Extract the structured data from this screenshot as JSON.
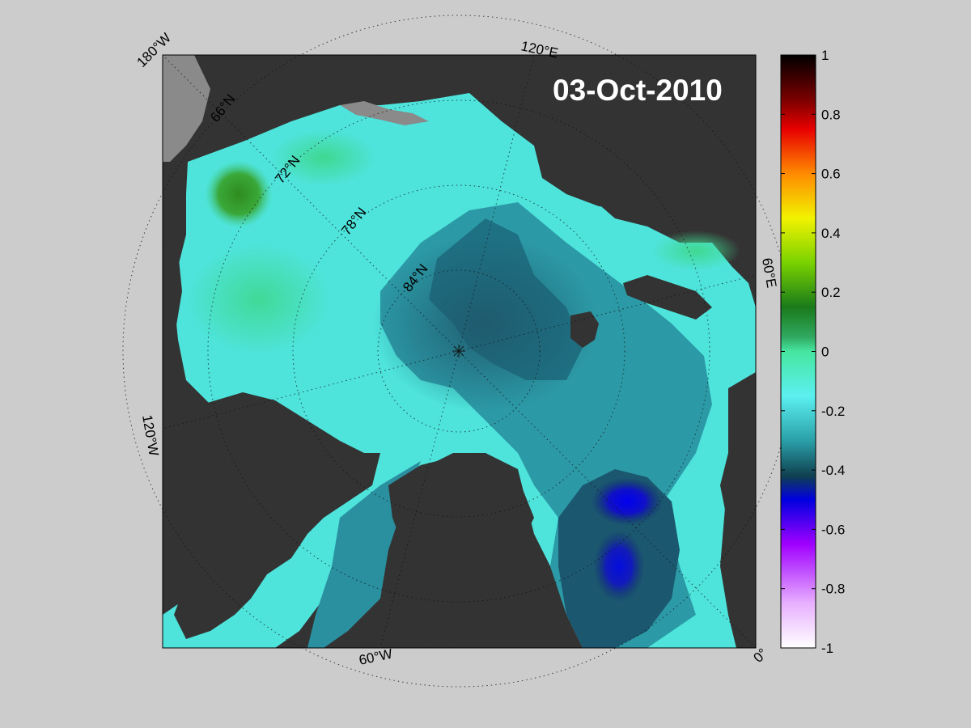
{
  "map": {
    "date": "03-Oct-2010",
    "background_color": "#cccccc",
    "land_color": "#333333",
    "ice_shelf_color": "#8a8a8a",
    "meridian_labels": [
      {
        "text": "180°W",
        "key": "m180w"
      },
      {
        "text": "120°E",
        "key": "m120e"
      },
      {
        "text": "60°E",
        "key": "m60e"
      },
      {
        "text": "0°",
        "key": "m0"
      },
      {
        "text": "60°W",
        "key": "m60w"
      },
      {
        "text": "120°W",
        "key": "m120w"
      }
    ],
    "parallel_labels": [
      "66°N",
      "72°N",
      "78°N",
      "84°N"
    ]
  },
  "colorbar": {
    "min": -1,
    "max": 1,
    "tick_labels": [
      "1",
      "0.8",
      "0.6",
      "0.4",
      "0.2",
      "0",
      "-0.2",
      "-0.4",
      "-0.6",
      "-0.8",
      "-1"
    ],
    "color_stops": [
      {
        "value": 1.0,
        "color": "#000000"
      },
      {
        "value": 0.85,
        "color": "#7a0000"
      },
      {
        "value": 0.75,
        "color": "#e80000"
      },
      {
        "value": 0.6,
        "color": "#ff8a00"
      },
      {
        "value": 0.45,
        "color": "#f2f200"
      },
      {
        "value": 0.3,
        "color": "#7ad200"
      },
      {
        "value": 0.15,
        "color": "#1a7a1a"
      },
      {
        "value": 0.05,
        "color": "#30a860"
      },
      {
        "value": 0.0,
        "color": "#46e6a0"
      },
      {
        "value": -0.15,
        "color": "#5cf0f0"
      },
      {
        "value": -0.3,
        "color": "#2aa0a8"
      },
      {
        "value": -0.42,
        "color": "#104050"
      },
      {
        "value": -0.5,
        "color": "#0000e0"
      },
      {
        "value": -0.65,
        "color": "#a000ff"
      },
      {
        "value": -0.85,
        "color": "#e8b0ff"
      },
      {
        "value": -1.0,
        "color": "#ffffff"
      }
    ]
  }
}
